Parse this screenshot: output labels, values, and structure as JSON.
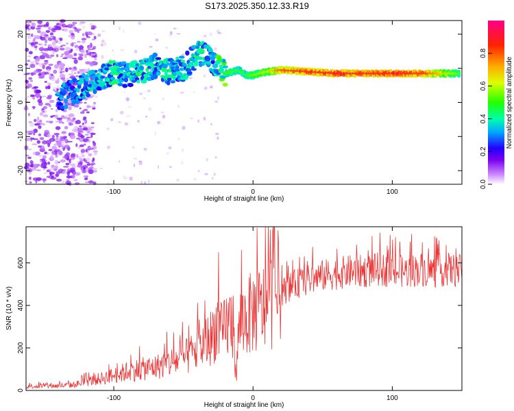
{
  "title": "S173.2025.350.12.33.R19",
  "colors": {
    "snr_line": "#ee3333",
    "axis": "#000000"
  },
  "chart_data": [
    {
      "type": "heatmap",
      "xlabel": "Height of straight line (km)",
      "ylabel": "Frequency (Hz)",
      "xlim": [
        -163,
        150
      ],
      "ylim": [
        -24,
        24
      ],
      "xticks": [
        "-100",
        "0",
        "100"
      ],
      "yticks": [
        "-20",
        "-10",
        "0",
        "10",
        "20"
      ],
      "colorbar": {
        "label": "Normalized spectral amplitude",
        "ticks": [
          "0.0",
          "0.2",
          "0.4",
          "0.6",
          "0.8"
        ],
        "colormap": [
          "#ffffff",
          "#cc99ff",
          "#7700ee",
          "#2200ff",
          "#00aaff",
          "#00ffaa",
          "#22ff00",
          "#ddff00",
          "#ffaa00",
          "#ff2200",
          "#ff0088"
        ]
      },
      "ridge": {
        "x": [
          -140,
          -120,
          -110,
          -100,
          -90,
          -80,
          -70,
          -60,
          -50,
          -40,
          -35,
          -30,
          -25,
          -20,
          -10,
          -5,
          0,
          10,
          20,
          40,
          60,
          80,
          100,
          120,
          150
        ],
        "freq": [
          1,
          5,
          7,
          9,
          8,
          9,
          11,
          9,
          10,
          14,
          15,
          12,
          10,
          8.5,
          9.5,
          8,
          8,
          9,
          9.5,
          9,
          8.5,
          8.5,
          8.5,
          8.5,
          8.5
        ],
        "amplitude": [
          0.3,
          0.35,
          0.35,
          0.4,
          0.35,
          0.4,
          0.35,
          0.4,
          0.35,
          0.4,
          0.4,
          0.3,
          0.45,
          0.5,
          0.5,
          0.5,
          0.55,
          0.6,
          0.8,
          0.85,
          0.9,
          0.85,
          0.9,
          0.85,
          0.5
        ]
      }
    },
    {
      "type": "line",
      "xlabel": "Height of straight line (km)",
      "ylabel": "SNR (10 * v/v)",
      "xlim": [
        -163,
        150
      ],
      "ylim": [
        0,
        770
      ],
      "xticks": [
        "-100",
        "0",
        "100"
      ],
      "yticks": [
        "0",
        "200",
        "400",
        "600"
      ],
      "series": [
        {
          "x": [
            -163,
            -150,
            -140,
            -130,
            -120,
            -110,
            -100,
            -90,
            -80,
            -70,
            -60,
            -50,
            -40,
            -30,
            -25,
            -22,
            -20,
            -15,
            -12,
            -10,
            -5,
            0,
            5,
            10,
            15,
            20,
            25,
            30,
            40,
            50,
            60,
            70,
            80,
            90,
            100,
            110,
            120,
            130,
            140,
            150
          ],
          "y": [
            20,
            20,
            22,
            25,
            40,
            55,
            70,
            90,
            100,
            110,
            130,
            150,
            190,
            250,
            320,
            250,
            300,
            330,
            60,
            320,
            340,
            370,
            380,
            400,
            440,
            460,
            480,
            500,
            520,
            540,
            550,
            560,
            560,
            570,
            560,
            560,
            570,
            560,
            570,
            560
          ]
        }
      ]
    }
  ]
}
